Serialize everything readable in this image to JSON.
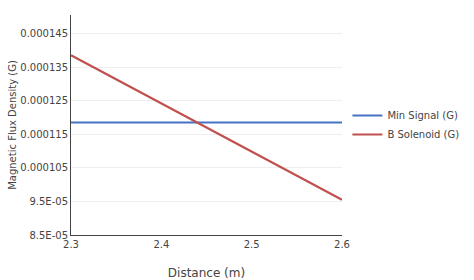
{
  "chart_data": {
    "type": "line",
    "x": [
      2.3,
      2.6
    ],
    "series": [
      {
        "name": "Min Signal (G)",
        "color": "#4472C4",
        "values": [
          0.0001185,
          0.0001185
        ]
      },
      {
        "name": "B Solenoid (G)",
        "color": "#C0504D",
        "values": [
          0.0001385,
          9.55e-05
        ]
      }
    ],
    "xlabel": "Distance (m)",
    "ylabel": "Magnetic Flux Density (G)",
    "xlim": [
      2.3,
      2.6
    ],
    "xticks": [
      2.3,
      2.4,
      2.5,
      2.6
    ],
    "ylim": [
      8.5e-05,
      0.0001505
    ],
    "yticks": [
      {
        "value": 8.5e-05,
        "label": "8.5E-05"
      },
      {
        "value": 9.5e-05,
        "label": "9.5E-05"
      },
      0.000105,
      0.000115,
      0.000125,
      0.000135,
      0.000145
    ],
    "grid": "y",
    "legend": "right"
  }
}
